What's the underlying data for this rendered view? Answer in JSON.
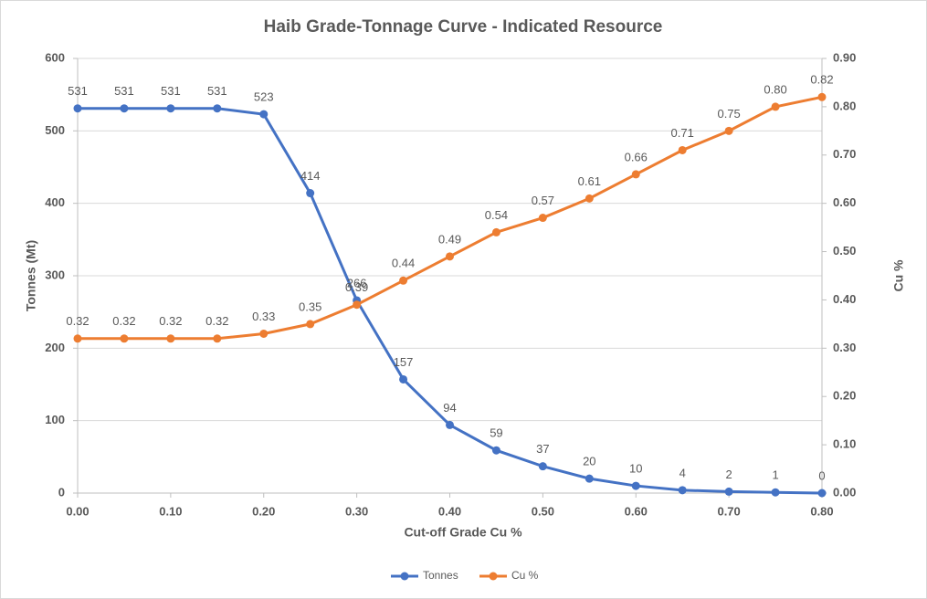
{
  "chart_data": {
    "type": "line",
    "title": "Haib Grade-Tonnage Curve - Indicated Resource",
    "x_label": "Cut-off Grade Cu %",
    "y_label": "Tonnes (Mt)",
    "y2_label": "Cu %",
    "x": [
      0,
      0.05,
      0.1,
      0.15,
      0.2,
      0.25,
      0.3,
      0.35,
      0.4,
      0.45,
      0.5,
      0.55,
      0.6,
      0.65,
      0.7,
      0.75,
      0.8
    ],
    "xlim": [
      0,
      0.8
    ],
    "xticks": [
      {
        "value": 0,
        "label": "0.00"
      },
      {
        "value": 0.1,
        "label": "0.10"
      },
      {
        "value": 0.2,
        "label": "0.20"
      },
      {
        "value": 0.3,
        "label": "0.30"
      },
      {
        "value": 0.4,
        "label": "0.40"
      },
      {
        "value": 0.5,
        "label": "0.50"
      },
      {
        "value": 0.6,
        "label": "0.60"
      },
      {
        "value": 0.7,
        "label": "0.70"
      },
      {
        "value": 0.8,
        "label": "0.80"
      }
    ],
    "ylim": [
      0,
      600
    ],
    "yticks": [
      0,
      100,
      200,
      300,
      400,
      500,
      600
    ],
    "y2lim": [
      0,
      0.9
    ],
    "y2ticks": [
      {
        "value": 0,
        "label": "0.00"
      },
      {
        "value": 0.1,
        "label": "0.10"
      },
      {
        "value": 0.2,
        "label": "0.20"
      },
      {
        "value": 0.3,
        "label": "0.30"
      },
      {
        "value": 0.4,
        "label": "0.40"
      },
      {
        "value": 0.5,
        "label": "0.50"
      },
      {
        "value": 0.6,
        "label": "0.60"
      },
      {
        "value": 0.7,
        "label": "0.70"
      },
      {
        "value": 0.8,
        "label": "0.80"
      },
      {
        "value": 0.9,
        "label": "0.90"
      }
    ],
    "grid": true,
    "legend": "bottom",
    "series": [
      {
        "name": "Tonnes",
        "color": "#4472c4",
        "values": [
          531,
          531,
          531,
          531,
          523,
          414,
          266,
          157,
          94,
          59,
          37,
          20,
          10,
          4,
          2,
          1,
          0
        ]
      },
      {
        "name": "Cu %",
        "color": "#ed7d31",
        "axis": "y2",
        "values": [
          0.32,
          0.32,
          0.32,
          0.32,
          0.33,
          0.35,
          0.39,
          0.44,
          0.49,
          0.54,
          0.57,
          0.61,
          0.66,
          0.71,
          0.75,
          0.8,
          0.82
        ],
        "value_labels": [
          "0.32",
          "0.32",
          "0.32",
          "0.32",
          "0.33",
          "0.35",
          "0.39",
          "0.44",
          "0.49",
          "0.54",
          "0.57",
          "0.61",
          "0.66",
          "0.71",
          "0.75",
          "0.80",
          "0.82"
        ]
      }
    ]
  }
}
